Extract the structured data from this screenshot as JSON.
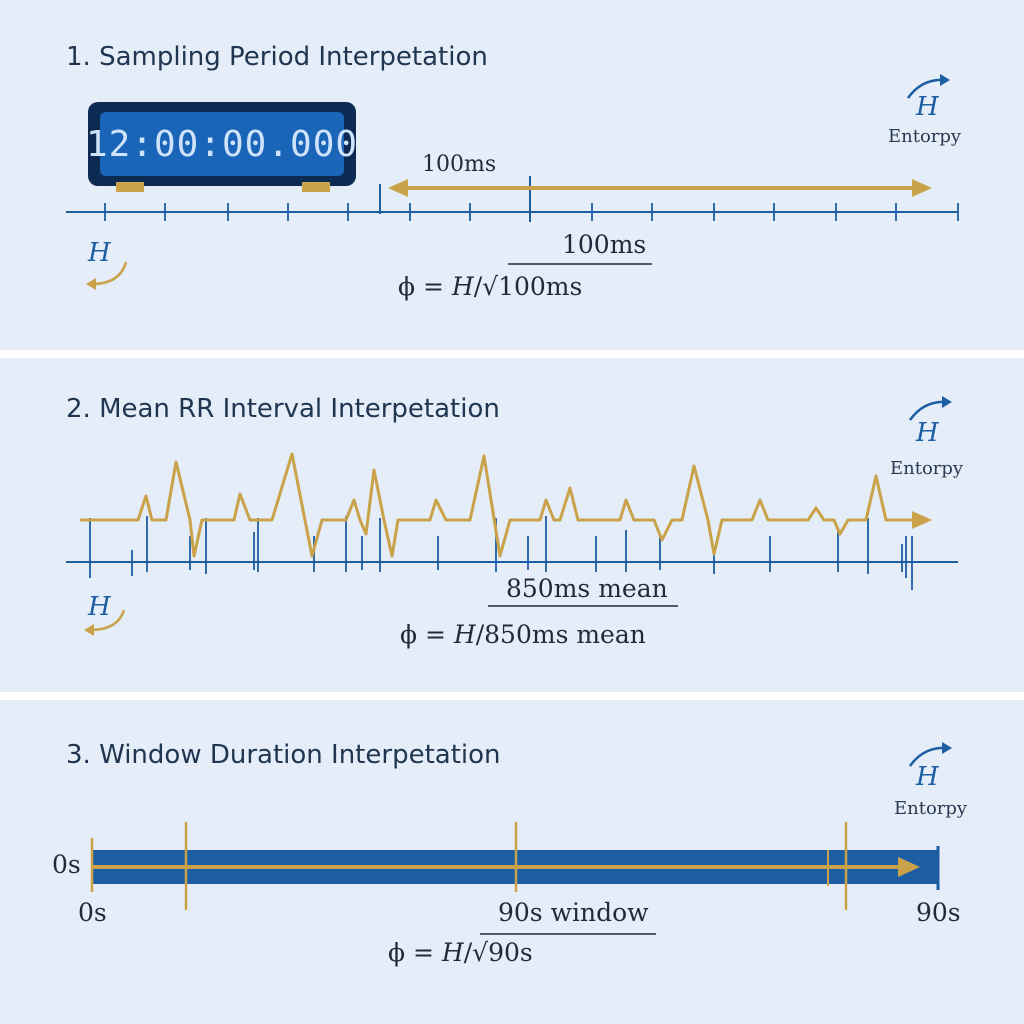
{
  "panel1": {
    "title": "1. Sampling Period Interpetation",
    "clock_display": "12:00:00.000",
    "interval_label": "100ms",
    "h_symbol": "H",
    "entropy_label": "Entorpy",
    "formula_numerator": "100ms",
    "formula_prefix": "ϕ = ",
    "formula_h": "H",
    "formula_denominator": "√100ms"
  },
  "panel2": {
    "title": "2. Mean RR Interval Interpetation",
    "h_symbol": "H",
    "entropy_label": "Entorpy",
    "formula_numerator": "850ms mean",
    "formula_prefix": "ϕ = ",
    "formula_h": "H",
    "formula_denominator": "850ms mean"
  },
  "panel3": {
    "title": "3. Window Duration Interpetation",
    "h_symbol": "H",
    "entropy_label": "Entorpy",
    "bar_left_label": "0s",
    "axis_start_label": "0s",
    "window_label": "90s window",
    "axis_end_label": "90s",
    "formula_prefix": "ϕ = ",
    "formula_h": "H",
    "formula_denominator": "√90s"
  },
  "colors": {
    "panel_bg": "#e4edf8",
    "blue": "#1d5ea3",
    "gold": "#c9a24a",
    "dark_text": "#1f2a3c"
  }
}
